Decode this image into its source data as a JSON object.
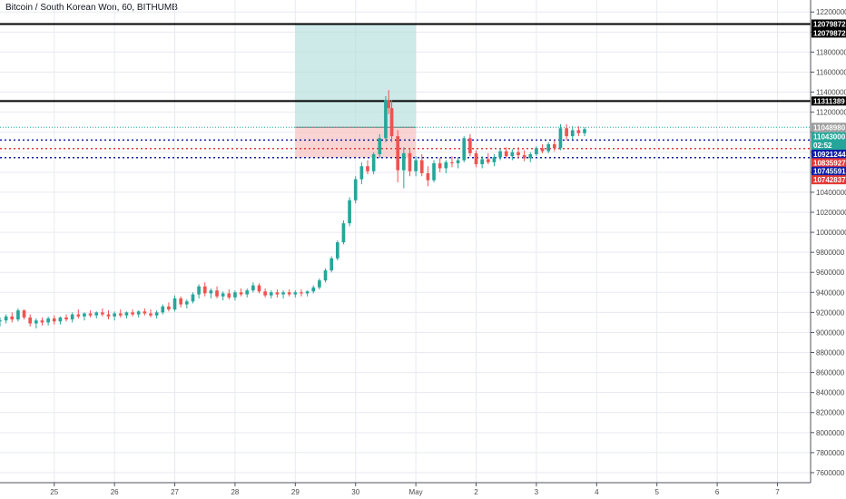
{
  "header": {
    "title": "Bitcoin / South Korean Won, 60, BITHUMB"
  },
  "colors": {
    "up": "#26a69a",
    "down": "#ef5350",
    "grid": "#e8eaf0",
    "axis": "#50535e",
    "target_zone": "#b2dfdb",
    "stop_zone": "#f8c4c4",
    "black_line": "#000000",
    "blue_dots": "#0d1ca8",
    "red_dots": "#e53935",
    "teal_dots": "#26a69a"
  },
  "price_axis": {
    "ticks": [
      "12200000",
      "12000000",
      "11800000",
      "11600000",
      "11400000",
      "11200000",
      "11000000",
      "10800000",
      "10600000",
      "10400000",
      "10200000",
      "10000000",
      "9800000",
      "9600000",
      "9400000",
      "9200000",
      "9000000",
      "8800000",
      "8600000",
      "8400000",
      "8200000",
      "8000000",
      "7800000",
      "7600000"
    ],
    "tick_values": [
      12200000,
      12000000,
      11800000,
      11600000,
      11400000,
      11200000,
      11000000,
      10800000,
      10600000,
      10400000,
      10200000,
      10000000,
      9800000,
      9600000,
      9400000,
      9200000,
      9000000,
      8800000,
      8600000,
      8400000,
      8200000,
      8000000,
      7800000,
      7600000
    ],
    "range": [
      7500000,
      12320000
    ]
  },
  "time_axis": {
    "labels": [
      "25",
      "26",
      "27",
      "28",
      "29",
      "30",
      "May",
      "2",
      "3",
      "4",
      "5",
      "6",
      "7"
    ],
    "day_index": [
      0,
      1,
      2,
      3,
      4,
      5,
      6,
      7,
      8,
      9,
      10,
      11,
      12
    ],
    "range": [
      -0.9,
      12.55
    ]
  },
  "price_tags": [
    {
      "label": "12079872",
      "value": 12079872,
      "color": "#000000"
    },
    {
      "label": "12079872",
      "value": 11990000,
      "color": "#000000"
    },
    {
      "label": "11311389",
      "value": 11311389,
      "color": "#000000"
    },
    {
      "label": "11048980",
      "value": 11048980,
      "color": "#9e9e9e"
    },
    {
      "label": "11043000",
      "value": 10955000,
      "color": "#26a69a"
    },
    {
      "label": "02:52",
      "value": 10870000,
      "color": "#26a69a"
    },
    {
      "label": "10921244",
      "value": 10780000,
      "color": "#0d1ca8"
    },
    {
      "label": "10835927",
      "value": 10695000,
      "color": "#e53935"
    },
    {
      "label": "10745591",
      "value": 10610000,
      "color": "#0d1ca8"
    },
    {
      "label": "10742837",
      "value": 10525000,
      "color": "#e53935"
    }
  ],
  "levels": [
    {
      "value": 12079872,
      "style": "solid-black"
    },
    {
      "value": 11311389,
      "style": "solid-black"
    },
    {
      "value": 11048980,
      "style": "teal-dotted"
    },
    {
      "value": 10921244,
      "style": "blue-dotted"
    },
    {
      "value": 10835927,
      "style": "red-dotted"
    },
    {
      "value": 10745591,
      "style": "blue-dotted"
    }
  ],
  "position_zone": {
    "start_day": 4.0,
    "end_day": 6.0,
    "entry": 11048980,
    "target": 12079872,
    "stop": 10745591
  },
  "chart_data": {
    "type": "candlestick",
    "title": "Bitcoin / South Korean Won, 60, BITHUMB",
    "x_unit": "days (25 Apr = 0, May = 6)",
    "candles": [
      [
        -0.9,
        9110000,
        9150000,
        9060000,
        9120000
      ],
      [
        -0.8,
        9120000,
        9180000,
        9090000,
        9160000
      ],
      [
        -0.7,
        9160000,
        9200000,
        9100000,
        9130000
      ],
      [
        -0.6,
        9130000,
        9240000,
        9110000,
        9220000
      ],
      [
        -0.5,
        9220000,
        9230000,
        9130000,
        9150000
      ],
      [
        -0.4,
        9150000,
        9180000,
        9060000,
        9090000
      ],
      [
        -0.3,
        9090000,
        9140000,
        9040000,
        9120000
      ],
      [
        -0.2,
        9120000,
        9150000,
        9070000,
        9100000
      ],
      [
        -0.1,
        9100000,
        9160000,
        9070000,
        9140000
      ],
      [
        0.0,
        9140000,
        9170000,
        9080000,
        9110000
      ],
      [
        0.1,
        9110000,
        9160000,
        9080000,
        9150000
      ],
      [
        0.2,
        9150000,
        9180000,
        9110000,
        9130000
      ],
      [
        0.3,
        9130000,
        9200000,
        9100000,
        9180000
      ],
      [
        0.4,
        9180000,
        9230000,
        9140000,
        9160000
      ],
      [
        0.5,
        9160000,
        9200000,
        9120000,
        9190000
      ],
      [
        0.6,
        9190000,
        9220000,
        9150000,
        9170000
      ],
      [
        0.7,
        9170000,
        9210000,
        9140000,
        9200000
      ],
      [
        0.8,
        9200000,
        9240000,
        9160000,
        9180000
      ],
      [
        0.9,
        9180000,
        9220000,
        9130000,
        9160000
      ],
      [
        1.0,
        9160000,
        9210000,
        9120000,
        9190000
      ],
      [
        1.1,
        9190000,
        9230000,
        9150000,
        9170000
      ],
      [
        1.2,
        9170000,
        9210000,
        9140000,
        9200000
      ],
      [
        1.3,
        9200000,
        9230000,
        9160000,
        9180000
      ],
      [
        1.4,
        9180000,
        9220000,
        9150000,
        9210000
      ],
      [
        1.5,
        9210000,
        9240000,
        9170000,
        9190000
      ],
      [
        1.6,
        9190000,
        9230000,
        9150000,
        9170000
      ],
      [
        1.7,
        9170000,
        9220000,
        9140000,
        9200000
      ],
      [
        1.8,
        9200000,
        9280000,
        9180000,
        9260000
      ],
      [
        1.9,
        9260000,
        9300000,
        9210000,
        9230000
      ],
      [
        2.0,
        9230000,
        9370000,
        9210000,
        9340000
      ],
      [
        2.1,
        9340000,
        9360000,
        9250000,
        9280000
      ],
      [
        2.2,
        9280000,
        9330000,
        9240000,
        9310000
      ],
      [
        2.3,
        9310000,
        9400000,
        9290000,
        9380000
      ],
      [
        2.4,
        9380000,
        9480000,
        9340000,
        9460000
      ],
      [
        2.5,
        9460000,
        9500000,
        9360000,
        9390000
      ],
      [
        2.6,
        9390000,
        9440000,
        9340000,
        9420000
      ],
      [
        2.7,
        9420000,
        9460000,
        9340000,
        9360000
      ],
      [
        2.8,
        9360000,
        9410000,
        9320000,
        9390000
      ],
      [
        2.9,
        9390000,
        9430000,
        9330000,
        9350000
      ],
      [
        3.0,
        9350000,
        9420000,
        9320000,
        9400000
      ],
      [
        3.1,
        9400000,
        9440000,
        9360000,
        9380000
      ],
      [
        3.2,
        9380000,
        9440000,
        9350000,
        9420000
      ],
      [
        3.3,
        9420000,
        9500000,
        9400000,
        9470000
      ],
      [
        3.4,
        9470000,
        9490000,
        9390000,
        9410000
      ],
      [
        3.5,
        9410000,
        9440000,
        9350000,
        9370000
      ],
      [
        3.6,
        9370000,
        9420000,
        9340000,
        9400000
      ],
      [
        3.7,
        9400000,
        9430000,
        9350000,
        9380000
      ],
      [
        3.8,
        9380000,
        9420000,
        9340000,
        9400000
      ],
      [
        3.9,
        9400000,
        9430000,
        9360000,
        9380000
      ],
      [
        4.0,
        9380000,
        9420000,
        9350000,
        9400000
      ],
      [
        4.1,
        9400000,
        9430000,
        9360000,
        9390000
      ],
      [
        4.2,
        9390000,
        9420000,
        9360000,
        9410000
      ],
      [
        4.3,
        9410000,
        9470000,
        9390000,
        9450000
      ],
      [
        4.4,
        9450000,
        9540000,
        9430000,
        9520000
      ],
      [
        4.5,
        9520000,
        9640000,
        9500000,
        9620000
      ],
      [
        4.6,
        9620000,
        9760000,
        9600000,
        9740000
      ],
      [
        4.7,
        9740000,
        9920000,
        9720000,
        9900000
      ],
      [
        4.8,
        9900000,
        10120000,
        9880000,
        10090000
      ],
      [
        4.9,
        10090000,
        10350000,
        10060000,
        10320000
      ],
      [
        5.0,
        10320000,
        10560000,
        10290000,
        10530000
      ],
      [
        5.1,
        10530000,
        10700000,
        10480000,
        10660000
      ],
      [
        5.2,
        10660000,
        10720000,
        10580000,
        10610000
      ],
      [
        5.3,
        10610000,
        10800000,
        10580000,
        10780000
      ],
      [
        5.4,
        10780000,
        10980000,
        10740000,
        10940000
      ],
      [
        5.5,
        10940000,
        11360000,
        10900000,
        11320000
      ],
      [
        5.55,
        11320000,
        11420000,
        11180000,
        11240000
      ],
      [
        5.6,
        11240000,
        11320000,
        10900000,
        10960000
      ],
      [
        5.7,
        10960000,
        11020000,
        10500000,
        10620000
      ],
      [
        5.8,
        10620000,
        10850000,
        10440000,
        10790000
      ],
      [
        5.9,
        10790000,
        10840000,
        10560000,
        10610000
      ],
      [
        6.0,
        10610000,
        10760000,
        10560000,
        10720000
      ],
      [
        6.1,
        10720000,
        10780000,
        10560000,
        10590000
      ],
      [
        6.2,
        10590000,
        10660000,
        10460000,
        10520000
      ],
      [
        6.3,
        10520000,
        10720000,
        10500000,
        10690000
      ],
      [
        6.4,
        10690000,
        10740000,
        10600000,
        10640000
      ],
      [
        6.5,
        10640000,
        10720000,
        10590000,
        10700000
      ],
      [
        6.6,
        10700000,
        10760000,
        10650000,
        10690000
      ],
      [
        6.7,
        10690000,
        10750000,
        10640000,
        10720000
      ],
      [
        6.8,
        10720000,
        10960000,
        10700000,
        10940000
      ],
      [
        6.9,
        10940000,
        10980000,
        10760000,
        10790000
      ],
      [
        7.0,
        10790000,
        10820000,
        10650000,
        10680000
      ],
      [
        7.1,
        10680000,
        10760000,
        10640000,
        10730000
      ],
      [
        7.2,
        10730000,
        10790000,
        10680000,
        10700000
      ],
      [
        7.3,
        10700000,
        10780000,
        10660000,
        10750000
      ],
      [
        7.4,
        10750000,
        10840000,
        10720000,
        10810000
      ],
      [
        7.5,
        10810000,
        10850000,
        10740000,
        10760000
      ],
      [
        7.6,
        10760000,
        10830000,
        10720000,
        10800000
      ],
      [
        7.7,
        10800000,
        10850000,
        10740000,
        10770000
      ],
      [
        7.8,
        10770000,
        10820000,
        10710000,
        10740000
      ],
      [
        7.9,
        10740000,
        10800000,
        10700000,
        10780000
      ],
      [
        8.0,
        10780000,
        10860000,
        10760000,
        10840000
      ],
      [
        8.1,
        10840000,
        10880000,
        10790000,
        10810000
      ],
      [
        8.2,
        10810000,
        10900000,
        10790000,
        10880000
      ],
      [
        8.3,
        10880000,
        10920000,
        10810000,
        10840000
      ],
      [
        8.4,
        10840000,
        11080000,
        10820000,
        11040000
      ],
      [
        8.5,
        11040000,
        11080000,
        10920000,
        10960000
      ],
      [
        8.6,
        10960000,
        11060000,
        10930000,
        11020000
      ],
      [
        8.7,
        11020000,
        11060000,
        10960000,
        10990000
      ],
      [
        8.8,
        10990000,
        11050000,
        10960000,
        11030000
      ]
    ]
  }
}
